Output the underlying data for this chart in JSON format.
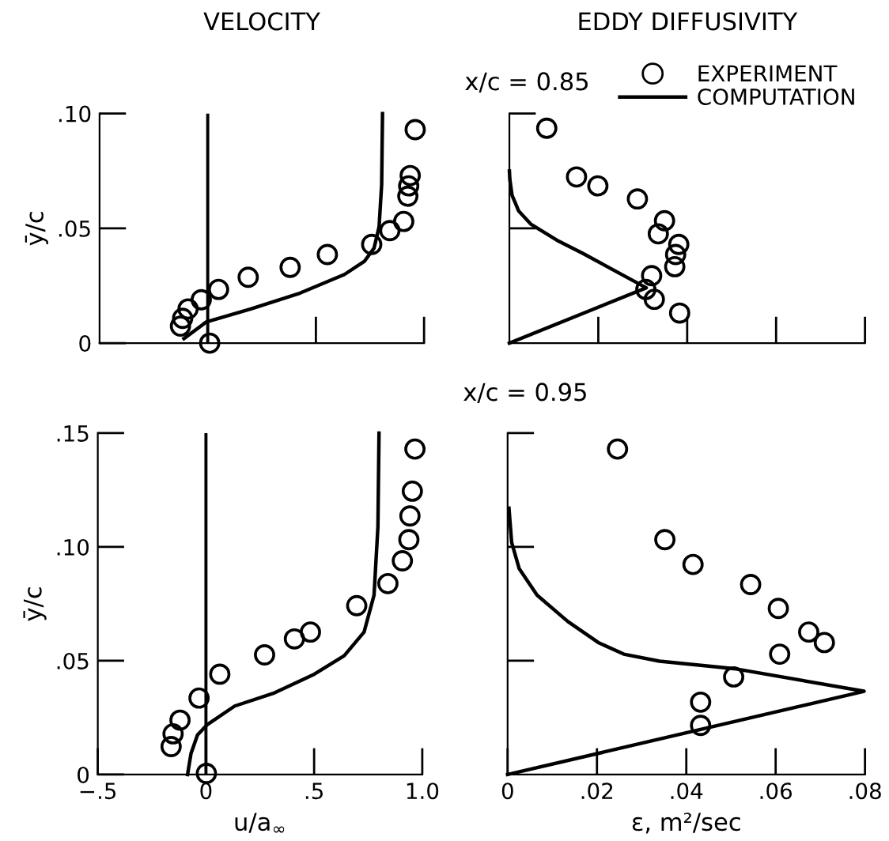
{
  "chart_data": [
    {
      "type": "scatter",
      "title": "VELOCITY",
      "ylabel": "ȳ/c",
      "xlim": [
        -0.5,
        1.0
      ],
      "ylim": [
        0,
        0.1
      ],
      "xticks": [
        {
          "value": 0.5,
          "label": null
        },
        {
          "value": 1.0,
          "label": null
        }
      ],
      "yticks": [
        {
          "value": 0,
          "label": "0"
        },
        {
          "value": 0.05,
          "label": ".05"
        },
        {
          "value": 0.1,
          "label": ".10"
        }
      ],
      "tick_labels": "y",
      "grid": false,
      "legend": false,
      "ref_lines": [
        {
          "axis": "x",
          "value": 0,
          "color": "#000000"
        }
      ],
      "series": [
        {
          "marker": "circle",
          "color": "#000000",
          "x": [
            0.959,
            0.936,
            0.929,
            0.925,
            0.906,
            0.842,
            0.758,
            0.553,
            0.381,
            0.187,
            0.05,
            -0.03,
            -0.091,
            -0.116,
            -0.126,
            0.009
          ],
          "values": [
            0.093,
            0.073,
            0.0685,
            0.064,
            0.053,
            0.049,
            0.043,
            0.0386,
            0.033,
            0.0287,
            0.0234,
            0.0189,
            0.0149,
            0.0108,
            0.0074,
            0.0
          ]
        },
        {
          "type": "line",
          "line_style": "solid",
          "color": "#000000",
          "x": [
            -0.11,
            -0.007,
            0.199,
            0.427,
            0.632,
            0.724,
            0.769,
            0.792,
            0.804,
            0.808
          ],
          "values": [
            0.002,
            0.0092,
            0.0149,
            0.0218,
            0.0299,
            0.0356,
            0.0414,
            0.0506,
            0.069,
            0.1
          ]
        }
      ]
    },
    {
      "type": "scatter",
      "title": "EDDY DIFFUSIVITY",
      "annotations": [
        "x/c = 0.85"
      ],
      "xlim": [
        0,
        0.08
      ],
      "ylim": [
        0,
        0.1
      ],
      "xticks": [
        {
          "value": 0.02,
          "label": null
        },
        {
          "value": 0.04,
          "label": null
        },
        {
          "value": 0.06,
          "label": null
        },
        {
          "value": 0.08,
          "label": null
        }
      ],
      "yticks": [
        {
          "value": 0.05,
          "label": null
        },
        {
          "value": 0.1,
          "label": null
        }
      ],
      "tick_labels": false,
      "grid": false,
      "legend": "top right",
      "series": [
        {
          "name": "EXPERIMENT",
          "marker": "circle",
          "color": "#000000",
          "x": [
            0.0084,
            0.0151,
            0.0199,
            0.0288,
            0.0349,
            0.0335,
            0.0381,
            0.0374,
            0.0372,
            0.032,
            0.0307,
            0.0326,
            0.0383
          ],
          "values": [
            0.0936,
            0.0724,
            0.0685,
            0.0628,
            0.0533,
            0.0476,
            0.043,
            0.0386,
            0.0333,
            0.0294,
            0.0234,
            0.0191,
            0.0131
          ]
        },
        {
          "type": "line",
          "name": "COMPUTATION",
          "line_style": "solid",
          "color": "#000000",
          "x": [
            0,
            0.0308,
            0.0165,
            0.0107,
            0.0049,
            0.0021,
            0.0006,
            0.0001,
            0
          ],
          "values": [
            0,
            0.0241,
            0.0391,
            0.0448,
            0.0517,
            0.0575,
            0.0644,
            0.0713,
            0.075
          ]
        }
      ]
    },
    {
      "type": "scatter",
      "xlabel": "u/a$_{∞}$",
      "ylabel": "ȳ/c",
      "xlim": [
        -0.5,
        1.0
      ],
      "ylim": [
        0,
        0.15
      ],
      "xticks": [
        {
          "value": -0.5,
          "label": "−.5"
        },
        {
          "value": 0,
          "label": "0"
        },
        {
          "value": 0.5,
          "label": ".5"
        },
        {
          "value": 1.0,
          "label": "1.0"
        }
      ],
      "yticks": [
        {
          "value": 0,
          "label": "0"
        },
        {
          "value": 0.05,
          "label": ".05"
        },
        {
          "value": 0.1,
          "label": ".10"
        },
        {
          "value": 0.15,
          "label": ".15"
        }
      ],
      "grid": false,
      "legend": false,
      "ref_lines": [
        {
          "axis": "x",
          "value": 0,
          "color": "#000000"
        }
      ],
      "series": [
        {
          "marker": "circle",
          "color": "#000000",
          "x": [
            0.966,
            0.954,
            0.943,
            0.938,
            0.908,
            0.841,
            0.697,
            0.483,
            0.409,
            0.271,
            0.064,
            -0.032,
            -0.12,
            -0.152,
            -0.161,
            0.002
          ],
          "values": [
            0.143,
            0.1245,
            0.1136,
            0.1032,
            0.0939,
            0.0839,
            0.0742,
            0.0626,
            0.0596,
            0.0526,
            0.0441,
            0.0336,
            0.0239,
            0.0179,
            0.0123,
            0.0005
          ]
        },
        {
          "type": "line",
          "line_style": "solid",
          "color": "#000000",
          "x": [
            -0.085,
            -0.069,
            -0.039,
            0.007,
            0.133,
            0.317,
            0.501,
            0.639,
            0.731,
            0.777,
            0.795,
            0.8
          ],
          "values": [
            0,
            0.0093,
            0.0174,
            0.022,
            0.0301,
            0.0359,
            0.0441,
            0.0522,
            0.0626,
            0.0788,
            0.109,
            0.15
          ]
        }
      ]
    },
    {
      "type": "scatter",
      "xlabel": "ε, m²/sec",
      "annotations": [
        "x/c = 0.95"
      ],
      "xlim": [
        0,
        0.08
      ],
      "ylim": [
        0,
        0.15
      ],
      "xticks": [
        {
          "value": 0,
          "label": "0"
        },
        {
          "value": 0.02,
          "label": ".02"
        },
        {
          "value": 0.04,
          "label": ".04"
        },
        {
          "value": 0.06,
          "label": ".06"
        },
        {
          "value": 0.08,
          "label": ".08"
        }
      ],
      "yticks": [
        {
          "value": 0.05,
          "label": null
        },
        {
          "value": 0.1,
          "label": null
        },
        {
          "value": 0.15,
          "label": null
        }
      ],
      "tick_labels": "x",
      "grid": false,
      "legend": false,
      "series": [
        {
          "marker": "circle",
          "color": "#000000",
          "x": [
            0.0246,
            0.0352,
            0.0415,
            0.0544,
            0.0606,
            0.0674,
            0.0709,
            0.0609,
            0.0506,
            0.0432,
            0.0432
          ],
          "values": [
            0.143,
            0.1032,
            0.0923,
            0.0835,
            0.073,
            0.0626,
            0.058,
            0.0529,
            0.0429,
            0.0318,
            0.0216
          ]
        },
        {
          "type": "line",
          "line_style": "solid",
          "color": "#000000",
          "x": [
            0,
            0.0798,
            0.0512,
            0.034,
            0.026,
            0.0203,
            0.0135,
            0.0066,
            0.0026,
            0.0009,
            0.0003
          ],
          "values": [
            0,
            0.0366,
            0.0464,
            0.0498,
            0.0529,
            0.058,
            0.0672,
            0.0788,
            0.0904,
            0.102,
            0.117
          ]
        }
      ]
    }
  ]
}
